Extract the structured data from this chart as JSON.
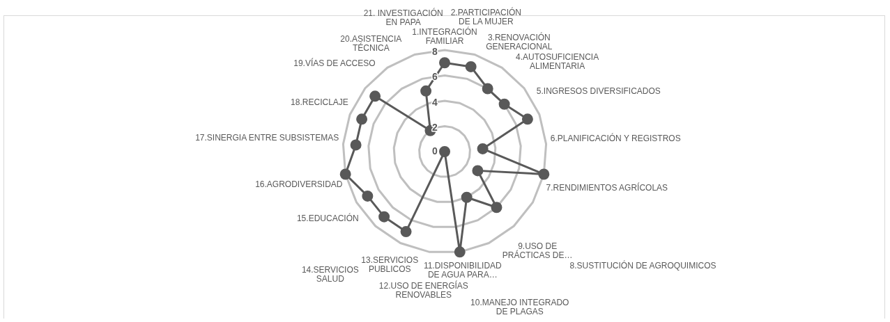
{
  "chart_data": {
    "type": "radar",
    "categories": [
      "1.INTEGRACIÓN FAMILIAR",
      "2.PARTICIPACIÓN DE LA MUJER",
      "3.RENOVACIÓN GENERACIONAL",
      "4.AUTOSUFICIENCIA ALIMENTARIA",
      "5.INGRESOS DIVERSIFICADOS",
      "6.PLANIFICACIÓN Y REGISTROS",
      "7.RENDIMIENTOS AGRÍCOLAS",
      "8.SUSTITUCIÓN DE AGROQUIMICOS",
      "9.USO DE PRÁCTICAS DE…",
      "10.MANEJO INTEGRADO DE PLAGAS",
      "11.DISPONIBILIDAD DE AGUA PARA…",
      "12.USO DE ENERGÍAS RENOVABLES",
      "13.SERVICIOS PUBLICOS",
      "14.SERVICIOS SALUD",
      "15.EDUCACIÓN",
      "16.AGRODIVERSIDAD",
      "17.SINERGIA ENTRE SUBSISTEMAS",
      "18.RECICLAJE",
      "19.VÍAS DE ACCESO",
      "20.ASISTENCIA TÉCNICA",
      "21. INVESTIGACIÓN EN PAPA"
    ],
    "series": [
      {
        "color": "#595959",
        "values": [
          7,
          7,
          6,
          6,
          7,
          3,
          8,
          3,
          6,
          4,
          8,
          0,
          7,
          7,
          7,
          8,
          7,
          7,
          7,
          2,
          5
        ]
      }
    ],
    "ylim": [
      0,
      8
    ],
    "yticks": [
      0,
      2,
      4,
      6,
      8
    ],
    "grid": true,
    "legend": false,
    "marker": "circle",
    "line_style": "solid"
  }
}
